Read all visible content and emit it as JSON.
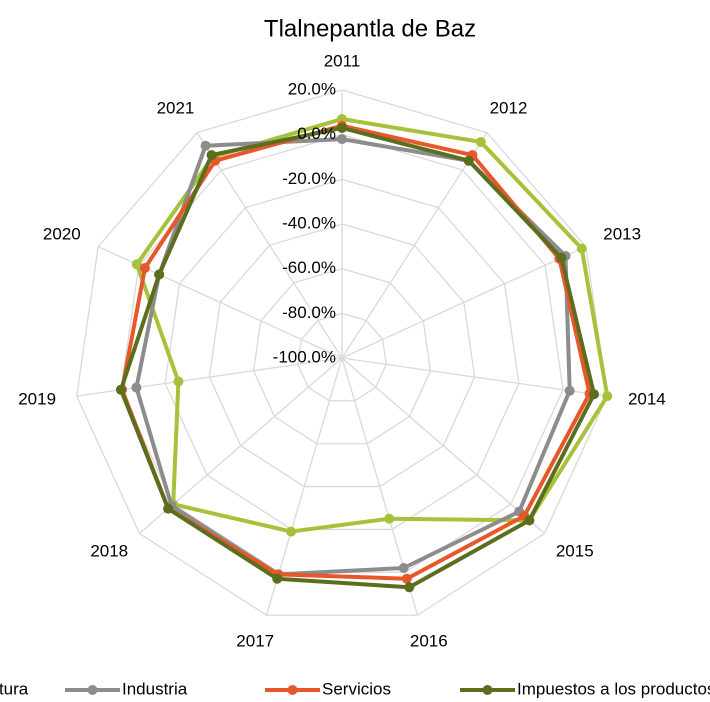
{
  "chart_data": {
    "type": "radar",
    "title": "Tlalnepantla  de Baz",
    "categories": [
      "2011",
      "2012",
      "2013",
      "2014",
      "2015",
      "2016",
      "2017",
      "2018",
      "2019",
      "2020",
      "2021"
    ],
    "series": [
      {
        "name": "Agricultura",
        "color": "#a5c23a",
        "values": [
          7,
          15,
          18,
          20,
          11,
          -25,
          -19,
          0,
          -26,
          1,
          7
        ]
      },
      {
        "name": "Industria",
        "color": "#8c8c8c",
        "values": [
          -2,
          5,
          10,
          3,
          5,
          -2,
          1,
          1,
          -7,
          -10,
          13
        ]
      },
      {
        "name": "Servicios",
        "color": "#e8572a",
        "values": [
          4,
          8,
          7,
          12,
          8,
          3,
          1,
          3,
          -0.5,
          -3,
          5
        ]
      },
      {
        "name": "Impuestos a los productos",
        "color": "#5a6e1e",
        "values": [
          3,
          5,
          8,
          14,
          11,
          7,
          3,
          3,
          0,
          -10,
          8
        ]
      }
    ],
    "ylim": [
      -100,
      20
    ],
    "yticks": [
      {
        "value": -100,
        "label": "-100.0%"
      },
      {
        "value": -80,
        "label": "-80.0%"
      },
      {
        "value": -60,
        "label": "-60.0%"
      },
      {
        "value": -40,
        "label": "-40.0%"
      },
      {
        "value": -20,
        "label": "-20.0%"
      },
      {
        "value": 0,
        "label": "0.0%"
      },
      {
        "value": 20,
        "label": "20.0%"
      }
    ],
    "grid": true,
    "legend": "bottom"
  }
}
